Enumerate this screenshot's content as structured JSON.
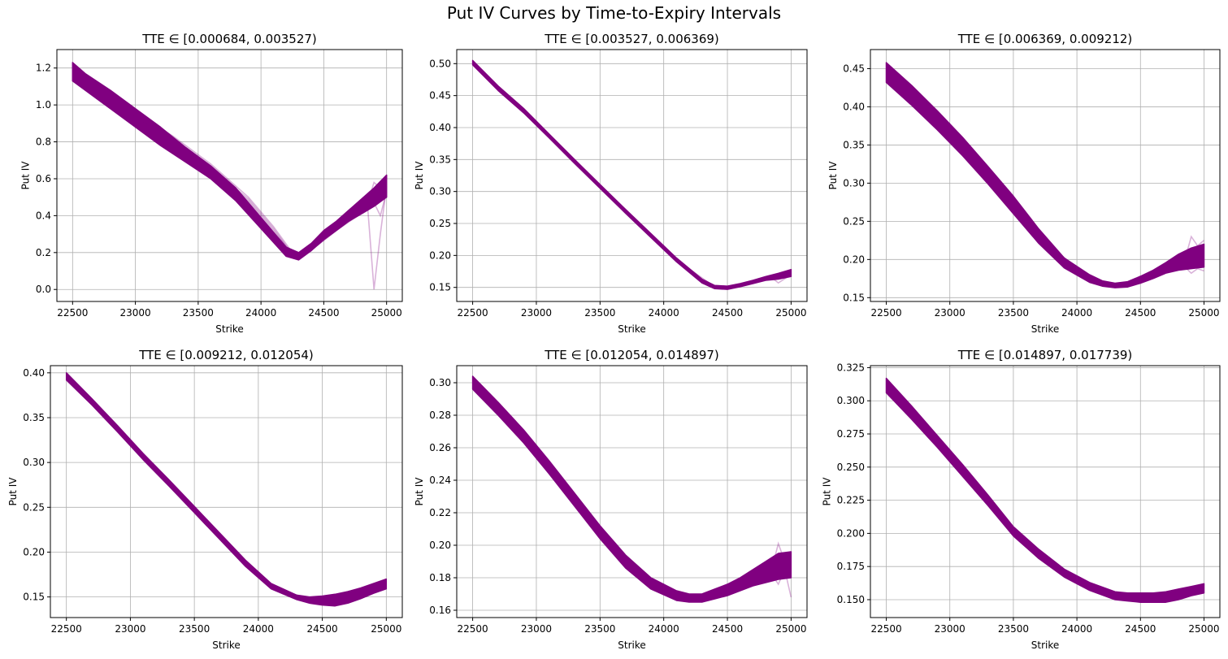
{
  "figure": {
    "title": "Put IV Curves by Time-to-Expiry Intervals"
  },
  "colors": {
    "line": "#800080",
    "grid": "#b0b0b0",
    "axes": "#000000"
  },
  "chart_data": [
    {
      "type": "line",
      "title": "TTE ∈ [0.000684, 0.003527)",
      "xlabel": "Strike",
      "ylabel": "Put IV",
      "grid": true,
      "xlim": [
        22375,
        25125
      ],
      "ylim": [
        -0.065,
        1.3
      ],
      "xticks": [
        22500,
        23000,
        23500,
        24000,
        24500,
        25000
      ],
      "xtick_labels": [
        "22500",
        "23000",
        "23500",
        "24000",
        "24500",
        "25000"
      ],
      "yticks": [
        0.0,
        0.2,
        0.4,
        0.6,
        0.8,
        1.0,
        1.2
      ],
      "ytick_labels": [
        "0.0",
        "0.2",
        "0.4",
        "0.6",
        "0.8",
        "1.0",
        "1.2"
      ],
      "band": {
        "x": [
          22500,
          22600,
          22800,
          23000,
          23200,
          23400,
          23600,
          23800,
          24000,
          24200,
          24300,
          24400,
          24500,
          24600,
          24700,
          24800,
          24900,
          25000
        ],
        "lower": [
          1.13,
          1.08,
          0.98,
          0.88,
          0.78,
          0.69,
          0.6,
          0.48,
          0.33,
          0.18,
          0.16,
          0.21,
          0.27,
          0.32,
          0.37,
          0.41,
          0.45,
          0.5
        ],
        "upper": [
          1.23,
          1.17,
          1.08,
          0.98,
          0.88,
          0.77,
          0.67,
          0.55,
          0.39,
          0.23,
          0.2,
          0.25,
          0.32,
          0.37,
          0.43,
          0.49,
          0.55,
          0.62
        ]
      },
      "series": [
        {
          "x": [
            22500,
            22700,
            23000,
            23300,
            23600,
            23900,
            24100,
            24250,
            24300,
            24450,
            24600,
            24750,
            24850,
            24900,
            24950,
            25000
          ],
          "y": [
            1.16,
            1.08,
            0.93,
            0.8,
            0.65,
            0.48,
            0.32,
            0.19,
            0.18,
            0.24,
            0.32,
            0.4,
            0.44,
            0.0,
            0.3,
            0.56
          ]
        },
        {
          "x": [
            22500,
            22700,
            23000,
            23300,
            23600,
            23900,
            24100,
            24250,
            24300,
            24450,
            24600,
            24750,
            24850,
            24900,
            24950,
            25000
          ],
          "y": [
            1.19,
            1.11,
            0.96,
            0.83,
            0.68,
            0.5,
            0.34,
            0.2,
            0.19,
            0.25,
            0.33,
            0.42,
            0.47,
            0.58,
            0.55,
            0.57
          ]
        },
        {
          "x": [
            22500,
            22700,
            23000,
            23300,
            23600,
            23900,
            24100,
            24250,
            24300,
            24450,
            24600,
            24750,
            24850,
            24900,
            24950,
            25000
          ],
          "y": [
            1.17,
            1.09,
            0.94,
            0.81,
            0.66,
            0.49,
            0.33,
            0.19,
            0.18,
            0.24,
            0.32,
            0.39,
            0.43,
            0.47,
            0.4,
            0.53
          ]
        }
      ]
    },
    {
      "type": "line",
      "title": "TTE ∈ [0.003527, 0.006369)",
      "xlabel": "Strike",
      "ylabel": "Put IV",
      "grid": true,
      "xlim": [
        22375,
        25125
      ],
      "ylim": [
        0.128,
        0.522
      ],
      "xticks": [
        22500,
        23000,
        23500,
        24000,
        24500,
        25000
      ],
      "xtick_labels": [
        "22500",
        "23000",
        "23500",
        "24000",
        "24500",
        "25000"
      ],
      "yticks": [
        0.15,
        0.2,
        0.25,
        0.3,
        0.35,
        0.4,
        0.45,
        0.5
      ],
      "ytick_labels": [
        "0.15",
        "0.20",
        "0.25",
        "0.30",
        "0.35",
        "0.40",
        "0.45",
        "0.50"
      ],
      "band": {
        "x": [
          22500,
          22700,
          22900,
          23100,
          23300,
          23500,
          23700,
          23900,
          24100,
          24300,
          24400,
          24500,
          24600,
          24700,
          24800,
          24900,
          25000
        ],
        "lower": [
          0.498,
          0.458,
          0.423,
          0.384,
          0.344,
          0.305,
          0.266,
          0.228,
          0.19,
          0.157,
          0.148,
          0.147,
          0.151,
          0.156,
          0.161,
          0.163,
          0.167
        ],
        "upper": [
          0.505,
          0.465,
          0.43,
          0.39,
          0.35,
          0.311,
          0.272,
          0.234,
          0.196,
          0.163,
          0.153,
          0.152,
          0.156,
          0.161,
          0.167,
          0.172,
          0.178
        ]
      },
      "series": [
        {
          "x": [
            22500,
            22900,
            23300,
            23700,
            24100,
            24400,
            24500,
            24700,
            24850,
            24900,
            25000
          ],
          "y": [
            0.501,
            0.426,
            0.347,
            0.269,
            0.193,
            0.151,
            0.149,
            0.158,
            0.165,
            0.157,
            0.17
          ]
        }
      ]
    },
    {
      "type": "line",
      "title": "TTE ∈ [0.006369, 0.009212)",
      "xlabel": "Strike",
      "ylabel": "Put IV",
      "grid": true,
      "xlim": [
        22375,
        25125
      ],
      "ylim": [
        0.145,
        0.475
      ],
      "xticks": [
        22500,
        23000,
        23500,
        24000,
        24500,
        25000
      ],
      "xtick_labels": [
        "22500",
        "23000",
        "23500",
        "24000",
        "24500",
        "25000"
      ],
      "yticks": [
        0.15,
        0.2,
        0.25,
        0.3,
        0.35,
        0.4,
        0.45
      ],
      "ytick_labels": [
        "0.15",
        "0.20",
        "0.25",
        "0.30",
        "0.35",
        "0.40",
        "0.45"
      ],
      "band": {
        "x": [
          22500,
          22700,
          22900,
          23100,
          23300,
          23500,
          23700,
          23900,
          24100,
          24200,
          24300,
          24400,
          24500,
          24600,
          24700,
          24800,
          24900,
          25000
        ],
        "lower": [
          0.432,
          0.402,
          0.37,
          0.336,
          0.299,
          0.26,
          0.221,
          0.189,
          0.17,
          0.165,
          0.163,
          0.164,
          0.169,
          0.175,
          0.182,
          0.186,
          0.188,
          0.19
        ],
        "upper": [
          0.458,
          0.428,
          0.395,
          0.36,
          0.322,
          0.283,
          0.24,
          0.202,
          0.18,
          0.172,
          0.169,
          0.171,
          0.178,
          0.186,
          0.196,
          0.207,
          0.215,
          0.22
        ]
      },
      "series": [
        {
          "x": [
            22500,
            22900,
            23300,
            23700,
            24100,
            24300,
            24500,
            24700,
            24850,
            24900,
            24950,
            25000
          ],
          "y": [
            0.445,
            0.382,
            0.31,
            0.23,
            0.175,
            0.166,
            0.173,
            0.189,
            0.2,
            0.23,
            0.218,
            0.225
          ]
        },
        {
          "x": [
            22500,
            22900,
            23300,
            23700,
            24100,
            24300,
            24500,
            24700,
            24850,
            24900,
            24950,
            25000
          ],
          "y": [
            0.44,
            0.378,
            0.306,
            0.226,
            0.173,
            0.165,
            0.171,
            0.184,
            0.19,
            0.182,
            0.188,
            0.185
          ]
        }
      ]
    },
    {
      "type": "line",
      "title": "TTE ∈ [0.009212, 0.012054)",
      "xlabel": "Strike",
      "ylabel": "Put IV",
      "grid": true,
      "xlim": [
        22375,
        25125
      ],
      "ylim": [
        0.127,
        0.408
      ],
      "xticks": [
        22500,
        23000,
        23500,
        24000,
        24500,
        25000
      ],
      "xtick_labels": [
        "22500",
        "23000",
        "23500",
        "24000",
        "24500",
        "25000"
      ],
      "yticks": [
        0.15,
        0.2,
        0.25,
        0.3,
        0.35,
        0.4
      ],
      "ytick_labels": [
        "0.15",
        "0.20",
        "0.25",
        "0.30",
        "0.35",
        "0.40"
      ],
      "band": {
        "x": [
          22500,
          22700,
          22900,
          23100,
          23300,
          23500,
          23700,
          23900,
          24100,
          24300,
          24400,
          24500,
          24600,
          24700,
          24800,
          24900,
          25000
        ],
        "lower": [
          0.392,
          0.364,
          0.334,
          0.303,
          0.274,
          0.244,
          0.214,
          0.184,
          0.159,
          0.147,
          0.143,
          0.141,
          0.14,
          0.143,
          0.148,
          0.154,
          0.159
        ],
        "upper": [
          0.4,
          0.371,
          0.341,
          0.31,
          0.281,
          0.251,
          0.221,
          0.191,
          0.165,
          0.152,
          0.15,
          0.151,
          0.153,
          0.156,
          0.16,
          0.165,
          0.17
        ]
      },
      "series": [
        {
          "x": [
            22500,
            22900,
            23300,
            23700,
            24100,
            24400,
            24600,
            24800,
            25000
          ],
          "y": [
            0.396,
            0.338,
            0.278,
            0.218,
            0.162,
            0.147,
            0.146,
            0.154,
            0.165
          ]
        }
      ]
    },
    {
      "type": "line",
      "title": "TTE ∈ [0.012054, 0.014897)",
      "xlabel": "Strike",
      "ylabel": "Put IV",
      "grid": true,
      "xlim": [
        22375,
        25125
      ],
      "ylim": [
        0.1555,
        0.3105
      ],
      "xticks": [
        22500,
        23000,
        23500,
        24000,
        24500,
        25000
      ],
      "xtick_labels": [
        "22500",
        "23000",
        "23500",
        "24000",
        "24500",
        "25000"
      ],
      "yticks": [
        0.16,
        0.18,
        0.2,
        0.22,
        0.24,
        0.26,
        0.28,
        0.3
      ],
      "ytick_labels": [
        "0.16",
        "0.18",
        "0.20",
        "0.22",
        "0.24",
        "0.26",
        "0.28",
        "0.30"
      ],
      "band": {
        "x": [
          22500,
          22700,
          22900,
          23100,
          23300,
          23500,
          23700,
          23900,
          24100,
          24200,
          24300,
          24400,
          24500,
          24600,
          24700,
          24800,
          24900,
          25000
        ],
        "lower": [
          0.296,
          0.28,
          0.263,
          0.244,
          0.224,
          0.204,
          0.186,
          0.173,
          0.166,
          0.165,
          0.165,
          0.167,
          0.169,
          0.172,
          0.175,
          0.177,
          0.179,
          0.18
        ],
        "upper": [
          0.304,
          0.288,
          0.271,
          0.252,
          0.232,
          0.212,
          0.194,
          0.18,
          0.172,
          0.17,
          0.17,
          0.173,
          0.176,
          0.18,
          0.185,
          0.19,
          0.195,
          0.196
        ]
      },
      "series": [
        {
          "x": [
            22500,
            22900,
            23300,
            23700,
            24100,
            24300,
            24500,
            24700,
            24850,
            24900,
            24950,
            25000
          ],
          "y": [
            0.3,
            0.267,
            0.228,
            0.19,
            0.169,
            0.167,
            0.172,
            0.18,
            0.186,
            0.201,
            0.19,
            0.192
          ]
        },
        {
          "x": [
            22500,
            22900,
            23300,
            23700,
            24100,
            24300,
            24500,
            24700,
            24850,
            24900,
            24950,
            25000
          ],
          "y": [
            0.299,
            0.266,
            0.227,
            0.189,
            0.168,
            0.166,
            0.171,
            0.178,
            0.182,
            0.176,
            0.185,
            0.168
          ]
        }
      ]
    },
    {
      "type": "line",
      "title": "TTE ∈ [0.014897, 0.017739)",
      "xlabel": "Strike",
      "ylabel": "Put IV",
      "grid": true,
      "xlim": [
        22375,
        25125
      ],
      "ylim": [
        0.1365,
        0.3265
      ],
      "xticks": [
        22500,
        23000,
        23500,
        24000,
        24500,
        25000
      ],
      "xtick_labels": [
        "22500",
        "23000",
        "23500",
        "24000",
        "24500",
        "25000"
      ],
      "yticks": [
        0.15,
        0.175,
        0.2,
        0.225,
        0.25,
        0.275,
        0.3,
        0.325
      ],
      "ytick_labels": [
        "0.150",
        "0.175",
        "0.200",
        "0.225",
        "0.250",
        "0.275",
        "0.300",
        "0.325"
      ],
      "band": {
        "x": [
          22500,
          22700,
          22900,
          23100,
          23300,
          23500,
          23700,
          23900,
          24100,
          24300,
          24400,
          24500,
          24600,
          24700,
          24800,
          24900,
          25000
        ],
        "lower": [
          0.306,
          0.286,
          0.265,
          0.243,
          0.221,
          0.198,
          0.181,
          0.167,
          0.157,
          0.15,
          0.149,
          0.148,
          0.148,
          0.148,
          0.15,
          0.153,
          0.155
        ],
        "upper": [
          0.317,
          0.296,
          0.274,
          0.252,
          0.229,
          0.205,
          0.188,
          0.173,
          0.163,
          0.156,
          0.155,
          0.155,
          0.155,
          0.156,
          0.158,
          0.16,
          0.162
        ]
      },
      "series": [
        {
          "x": [
            22500,
            22900,
            23300,
            23700,
            24100,
            24400,
            24600,
            24800,
            25000
          ],
          "y": [
            0.311,
            0.27,
            0.225,
            0.184,
            0.16,
            0.152,
            0.151,
            0.154,
            0.158
          ]
        }
      ]
    }
  ]
}
